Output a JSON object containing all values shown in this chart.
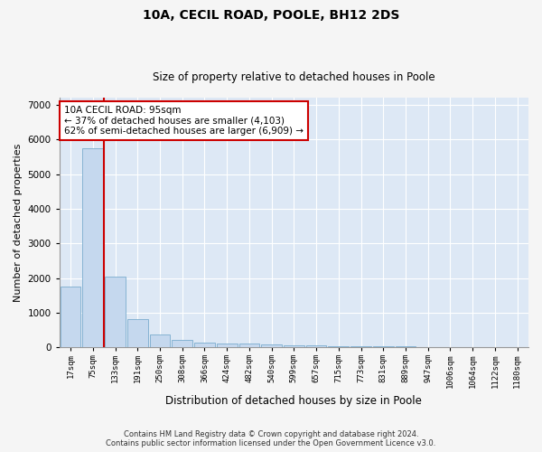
{
  "title": "10A, CECIL ROAD, POOLE, BH12 2DS",
  "subtitle": "Size of property relative to detached houses in Poole",
  "xlabel": "Distribution of detached houses by size in Poole",
  "ylabel": "Number of detached properties",
  "bar_labels": [
    "17sqm",
    "75sqm",
    "133sqm",
    "191sqm",
    "250sqm",
    "308sqm",
    "366sqm",
    "424sqm",
    "482sqm",
    "540sqm",
    "599sqm",
    "657sqm",
    "715sqm",
    "773sqm",
    "831sqm",
    "889sqm",
    "947sqm",
    "1006sqm",
    "1064sqm",
    "1122sqm",
    "1180sqm"
  ],
  "bar_values": [
    1750,
    5750,
    2050,
    820,
    360,
    210,
    130,
    100,
    95,
    85,
    65,
    50,
    40,
    30,
    25,
    20,
    15,
    10,
    8,
    5,
    5
  ],
  "bar_color": "#c5d8ee",
  "bar_edgecolor": "#7aacce",
  "redline_bar_index": 1,
  "redline_color": "#cc0000",
  "annotation_text": "10A CECIL ROAD: 95sqm\n← 37% of detached houses are smaller (4,103)\n62% of semi-detached houses are larger (6,909) →",
  "annotation_box_facecolor": "#ffffff",
  "annotation_box_edgecolor": "#cc0000",
  "ylim": [
    0,
    7200
  ],
  "yticks": [
    0,
    1000,
    2000,
    3000,
    4000,
    5000,
    6000,
    7000
  ],
  "background_color": "#dde8f5",
  "grid_color": "#ffffff",
  "fig_facecolor": "#f5f5f5",
  "footer_line1": "Contains HM Land Registry data © Crown copyright and database right 2024.",
  "footer_line2": "Contains public sector information licensed under the Open Government Licence v3.0.",
  "title_fontsize": 10,
  "subtitle_fontsize": 8.5,
  "ylabel_fontsize": 8,
  "xlabel_fontsize": 8.5,
  "tick_fontsize": 7.5,
  "xtick_fontsize": 6.5,
  "annotation_fontsize": 7.5,
  "footer_fontsize": 6
}
